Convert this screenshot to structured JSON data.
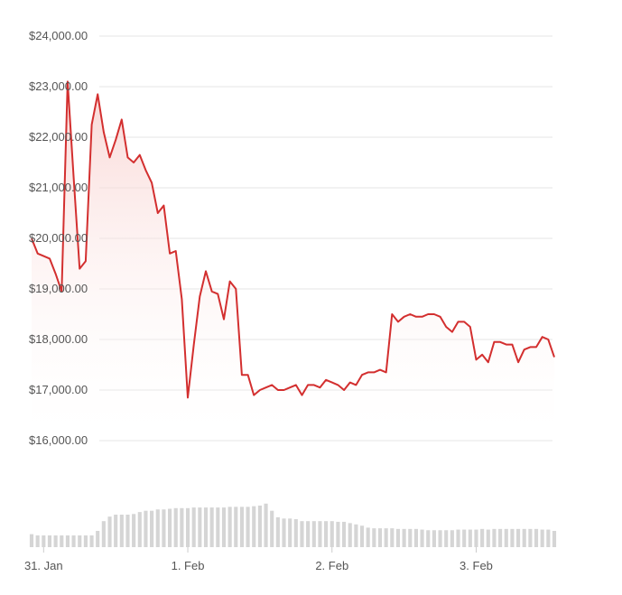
{
  "chart_data": [
    {
      "type": "area",
      "title": "",
      "xlabel": "",
      "ylabel": "",
      "ylim": [
        16000,
        24000
      ],
      "yticks": [
        16000,
        17000,
        18000,
        19000,
        20000,
        21000,
        22000,
        23000,
        24000
      ],
      "ytick_labels": [
        "$16,000.00",
        "$17,000.00",
        "$18,000.00",
        "$19,000.00",
        "$20,000.00",
        "$21,000.00",
        "$22,000.00",
        "$23,000.00",
        "$24,000.00"
      ],
      "grid": true,
      "x_range": [
        "2022-01-30T22:00",
        "2022-02-03T13:00"
      ],
      "colors": {
        "line": "#d32f2f",
        "fill_top": "#f7c9c6",
        "grid": "#e6e6e6",
        "tick_text": "#555555"
      },
      "series": [
        {
          "x": [
            "2022-01-30T22:00",
            "2022-01-30T23:00",
            "2022-01-31T00:00",
            "2022-01-31T01:00",
            "2022-01-31T02:00",
            "2022-01-31T03:00",
            "2022-01-31T04:00",
            "2022-01-31T05:00",
            "2022-01-31T06:00",
            "2022-01-31T07:00",
            "2022-01-31T08:00",
            "2022-01-31T09:00",
            "2022-01-31T10:00",
            "2022-01-31T11:00",
            "2022-01-31T12:00",
            "2022-01-31T13:00",
            "2022-01-31T14:00",
            "2022-01-31T15:00",
            "2022-01-31T16:00",
            "2022-01-31T17:00",
            "2022-01-31T18:00",
            "2022-01-31T19:00",
            "2022-01-31T20:00",
            "2022-01-31T21:00",
            "2022-01-31T22:00",
            "2022-01-31T23:00",
            "2022-02-01T00:00",
            "2022-02-01T01:00",
            "2022-02-01T02:00",
            "2022-02-01T03:00",
            "2022-02-01T04:00",
            "2022-02-01T05:00",
            "2022-02-01T06:00",
            "2022-02-01T07:00",
            "2022-02-01T08:00",
            "2022-02-01T09:00",
            "2022-02-01T10:00",
            "2022-02-01T11:00",
            "2022-02-01T12:00",
            "2022-02-01T13:00",
            "2022-02-01T14:00",
            "2022-02-01T15:00",
            "2022-02-01T16:00",
            "2022-02-01T17:00",
            "2022-02-01T18:00",
            "2022-02-01T19:00",
            "2022-02-01T20:00",
            "2022-02-01T21:00",
            "2022-02-01T22:00",
            "2022-02-01T23:00",
            "2022-02-02T00:00",
            "2022-02-02T01:00",
            "2022-02-02T02:00",
            "2022-02-02T03:00",
            "2022-02-02T04:00",
            "2022-02-02T05:00",
            "2022-02-02T06:00",
            "2022-02-02T07:00",
            "2022-02-02T08:00",
            "2022-02-02T09:00",
            "2022-02-02T10:00",
            "2022-02-02T11:00",
            "2022-02-02T12:00",
            "2022-02-02T13:00",
            "2022-02-02T14:00",
            "2022-02-02T15:00",
            "2022-02-02T16:00",
            "2022-02-02T17:00",
            "2022-02-02T18:00",
            "2022-02-02T19:00",
            "2022-02-02T20:00",
            "2022-02-02T21:00",
            "2022-02-02T22:00",
            "2022-02-02T23:00",
            "2022-02-03T00:00",
            "2022-02-03T01:00",
            "2022-02-03T02:00",
            "2022-02-03T03:00",
            "2022-02-03T04:00",
            "2022-02-03T05:00",
            "2022-02-03T06:00",
            "2022-02-03T07:00",
            "2022-02-03T08:00",
            "2022-02-03T09:00",
            "2022-02-03T10:00",
            "2022-02-03T11:00",
            "2022-02-03T12:00",
            "2022-02-03T13:00"
          ],
          "values": [
            20000,
            19700,
            19650,
            19600,
            19300,
            18950,
            23100,
            21200,
            19400,
            19550,
            22250,
            22850,
            22100,
            21600,
            21950,
            22350,
            21600,
            21500,
            21650,
            21350,
            21100,
            20500,
            20650,
            19700,
            19750,
            18800,
            16850,
            17900,
            18850,
            19350,
            18950,
            18900,
            18400,
            19150,
            19000,
            17300,
            17300,
            16900,
            17000,
            17050,
            17100,
            17000,
            17000,
            17050,
            17100,
            16900,
            17100,
            17100,
            17050,
            17200,
            17150,
            17100,
            17000,
            17150,
            17100,
            17300,
            17350,
            17350,
            17400,
            17350,
            18500,
            18350,
            18450,
            18500,
            18450,
            18450,
            18500,
            18500,
            18450,
            18250,
            18150,
            18350,
            18350,
            18250,
            17600,
            17700,
            17550,
            17950,
            17950,
            17900,
            17900,
            17550,
            17800,
            17850,
            17850,
            18050,
            18000,
            17650
          ]
        }
      ]
    },
    {
      "type": "bar",
      "title": "",
      "xlabel": "",
      "ylabel": "",
      "ylim": [
        0,
        100
      ],
      "colors": {
        "bar": "#d5d5d5"
      },
      "x_tick_labels": [
        {
          "label": "31. Jan",
          "x": "2022-01-31T00:00"
        },
        {
          "label": "1. Feb",
          "x": "2022-02-01T00:00"
        },
        {
          "label": "2. Feb",
          "x": "2022-02-02T00:00"
        },
        {
          "label": "3. Feb",
          "x": "2022-02-03T00:00"
        }
      ],
      "series": [
        {
          "values": [
            20,
            18,
            18,
            18,
            18,
            18,
            18,
            18,
            18,
            18,
            18,
            25,
            40,
            47,
            50,
            50,
            50,
            51,
            54,
            56,
            56,
            58,
            58,
            59,
            60,
            60,
            60,
            61,
            61,
            61,
            61,
            61,
            61,
            62,
            62,
            62,
            62,
            63,
            64,
            67,
            56,
            46,
            44,
            44,
            43,
            40,
            40,
            40,
            40,
            40,
            40,
            39,
            39,
            37,
            35,
            33,
            30,
            29,
            29,
            29,
            29,
            28,
            28,
            28,
            28,
            27,
            26,
            26,
            26,
            26,
            26,
            27,
            27,
            27,
            27,
            28,
            27,
            28,
            28,
            28,
            28,
            28,
            28,
            28,
            28,
            27,
            27,
            25
          ]
        }
      ]
    }
  ]
}
